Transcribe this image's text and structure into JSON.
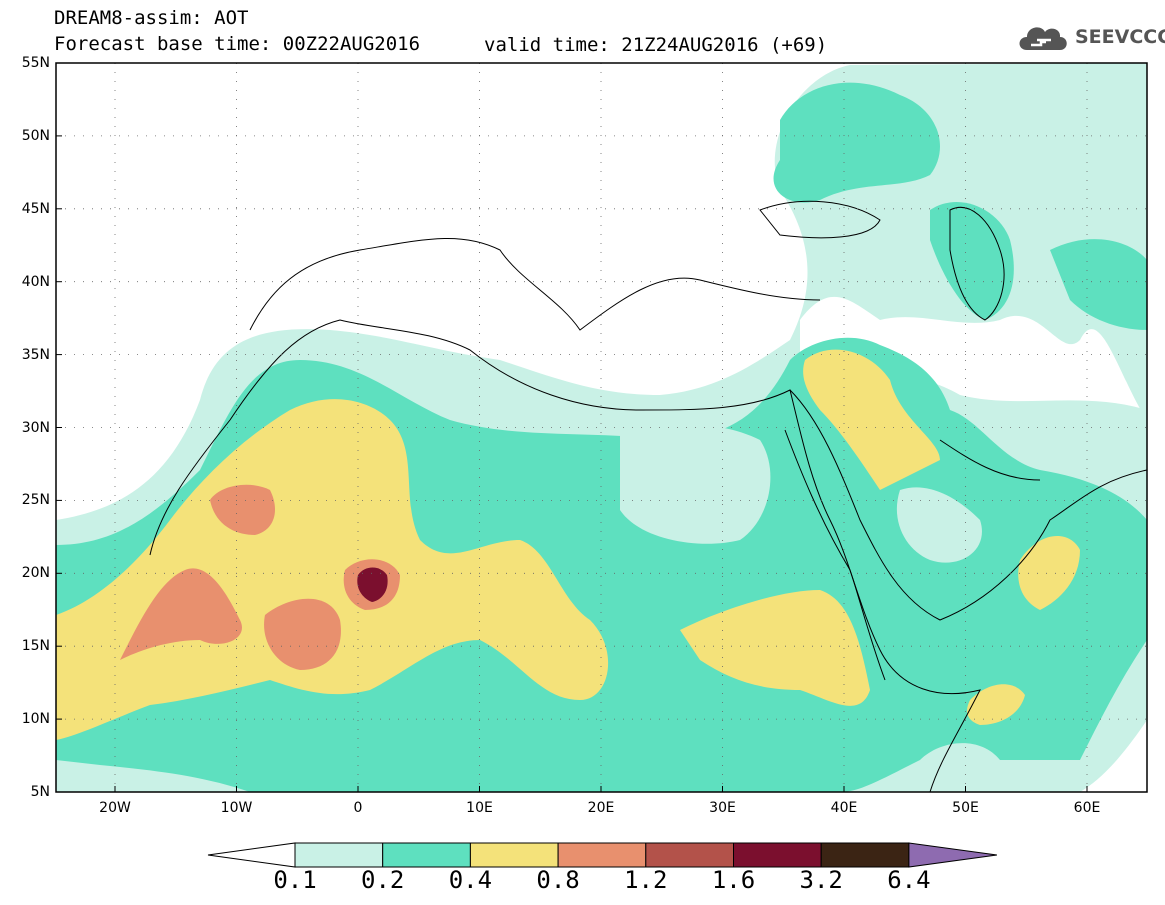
{
  "header": {
    "title": "DREAM8-assim: AOT",
    "base_time": "Forecast base time: 00Z22AUG2016",
    "valid_time": "valid time: 21Z24AUG2016 (+69)"
  },
  "logo": {
    "text": "SEEVCCC",
    "icon": "cloud-icon"
  },
  "map": {
    "lat_labels": [
      "55N",
      "50N",
      "45N",
      "40N",
      "35N",
      "30N",
      "25N",
      "20N",
      "15N",
      "10N",
      "5N"
    ],
    "lon_labels": [
      "20W",
      "10W",
      "0",
      "10E",
      "20E",
      "30E",
      "40E",
      "50E",
      "60E"
    ]
  },
  "colorbar": {
    "labels": [
      "0.1",
      "0.2",
      "0.4",
      "0.8",
      "1.2",
      "1.6",
      "3.2",
      "6.4"
    ],
    "colors": [
      "#ffffff",
      "#c9f1e6",
      "#5ee0bf",
      "#f4e27a",
      "#e8906e",
      "#b3524a",
      "#7b0f2e",
      "#3b2414",
      "#8e6bb0"
    ]
  }
}
